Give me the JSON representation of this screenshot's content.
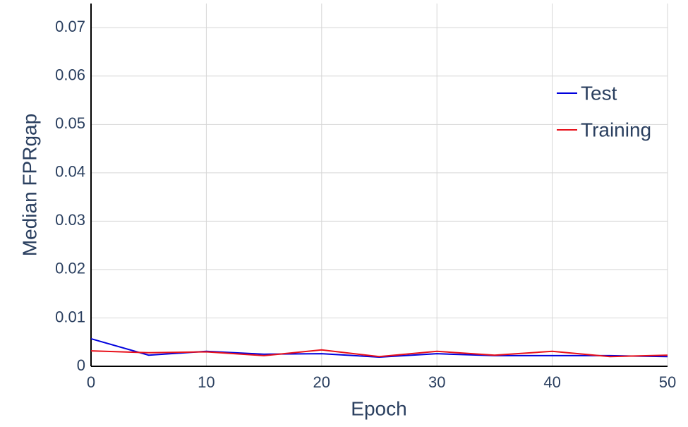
{
  "chart_data": {
    "type": "line",
    "x": [
      0,
      5,
      10,
      15,
      20,
      25,
      30,
      35,
      40,
      45,
      50
    ],
    "series": [
      {
        "name": "Test",
        "color": "#0000dd",
        "values": [
          0.0057,
          0.0023,
          0.0031,
          0.0025,
          0.0026,
          0.0019,
          0.0026,
          0.0022,
          0.0022,
          0.0022,
          0.002
        ]
      },
      {
        "name": "Training",
        "color": "#e8101a",
        "values": [
          0.0032,
          0.0028,
          0.003,
          0.0022,
          0.0034,
          0.002,
          0.0031,
          0.0023,
          0.0031,
          0.002,
          0.0023
        ]
      }
    ],
    "x_label": "Epoch",
    "y_label": "Median FPRgap",
    "xlim": [
      0,
      50
    ],
    "xticks": [
      0,
      10,
      20,
      30,
      40,
      50
    ],
    "ylim": [
      0,
      0.075
    ],
    "yticks": [
      0,
      0.01,
      0.02,
      0.03,
      0.04,
      0.05,
      0.06,
      0.07
    ],
    "grid": true,
    "legend": "upper right"
  }
}
